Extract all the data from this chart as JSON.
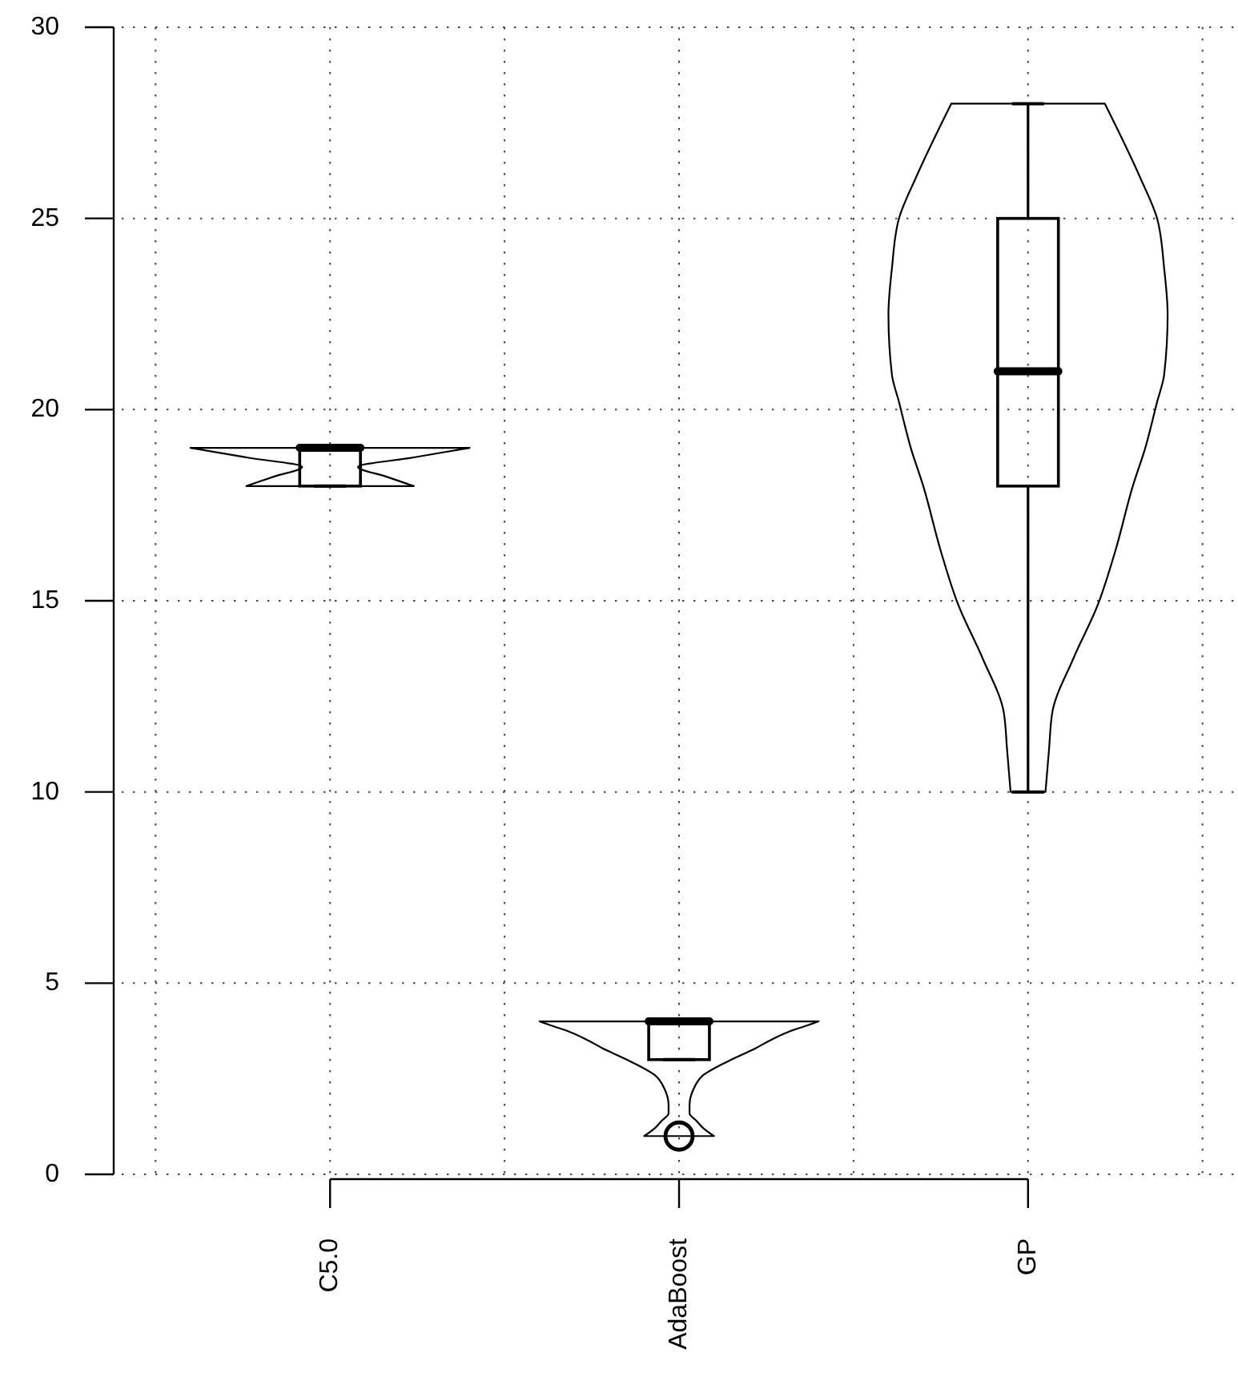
{
  "chart_data": {
    "type": "box",
    "categories": [
      "C5.0",
      "AdaBoost",
      "GP"
    ],
    "ylim": [
      0,
      30
    ],
    "yticks": [
      0,
      5,
      10,
      15,
      20,
      25,
      30
    ],
    "grid": true,
    "boxes": [
      {
        "low": 18,
        "q1": 18,
        "median": 19,
        "q3": 19,
        "high": 19
      },
      {
        "low": 3,
        "q1": 3,
        "median": 4,
        "q3": 4,
        "high": 4,
        "outliers": [
          1
        ]
      },
      {
        "low": 10,
        "q1": 18,
        "median": 21,
        "q3": 25,
        "high": 28
      }
    ]
  }
}
